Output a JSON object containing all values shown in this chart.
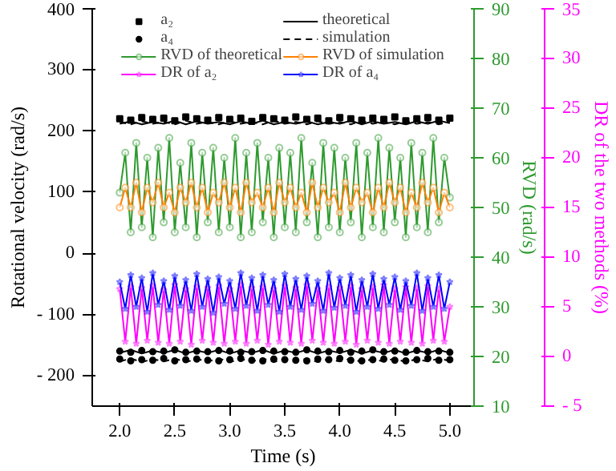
{
  "chart_data": {
    "type": "line",
    "xlabel": "Time (s)",
    "ylabel": "Rotational velocity (rad/s)",
    "y2label": "RVD (rad/s)",
    "y3label": "DR of the two methods (%)",
    "xlim": [
      1.75,
      5.22
    ],
    "xticks": [
      {
        "value": 2.0,
        "label": "2.0"
      },
      2.5,
      {
        "value": 3.0,
        "label": "3.0"
      },
      3.5,
      {
        "value": 4.0,
        "label": "4.0"
      },
      4.5,
      {
        "value": 5.0,
        "label": "5.0"
      }
    ],
    "ylim": [
      -250,
      400
    ],
    "yticks": [
      {
        "value": -200,
        "label": "- 200"
      },
      {
        "value": -100,
        "label": "- 100"
      },
      0,
      100,
      200,
      300,
      400
    ],
    "y2lim": [
      10,
      90
    ],
    "y2ticks": [
      10,
      20,
      30,
      40,
      50,
      60,
      70,
      80,
      90
    ],
    "y3lim": [
      -5,
      35
    ],
    "y3ticks": [
      {
        "value": -5,
        "label": "- 5"
      },
      0,
      5,
      10,
      15,
      20,
      25,
      30,
      35
    ],
    "grid": false,
    "legend": "top",
    "x": [
      2.0,
      2.05,
      2.1,
      2.15,
      2.2,
      2.25,
      2.3,
      2.35,
      2.4,
      2.45,
      2.5,
      2.55,
      2.6,
      2.65,
      2.7,
      2.75,
      2.8,
      2.85,
      2.9,
      2.95,
      3.0,
      3.05,
      3.1,
      3.15,
      3.2,
      3.25,
      3.3,
      3.35,
      3.4,
      3.45,
      3.5,
      3.55,
      3.6,
      3.65,
      3.7,
      3.75,
      3.8,
      3.85,
      3.9,
      3.95,
      4.0,
      4.05,
      4.1,
      4.15,
      4.2,
      4.25,
      4.3,
      4.35,
      4.4,
      4.45,
      4.5,
      4.55,
      4.6,
      4.65,
      4.7,
      4.75,
      4.8,
      4.85,
      4.9,
      4.95,
      5.0
    ],
    "series": [
      {
        "name": "a₂",
        "type": "scatter",
        "marker": "square",
        "color": "#000000",
        "x": [
          2.0,
          2.1,
          2.2,
          2.3,
          2.4,
          2.5,
          2.6,
          2.7,
          2.8,
          2.9,
          3.0,
          3.1,
          3.2,
          3.3,
          3.4,
          3.5,
          3.6,
          3.7,
          3.8,
          3.9,
          4.0,
          4.1,
          4.2,
          4.3,
          4.4,
          4.5,
          4.6,
          4.7,
          4.8,
          4.9,
          5.0
        ],
        "values": [
          220,
          218,
          222,
          219,
          221,
          217,
          223,
          220,
          218,
          222,
          219,
          221,
          216,
          222,
          220,
          218,
          223,
          219,
          221,
          217,
          222,
          220,
          218,
          221,
          219,
          223,
          217,
          220,
          222,
          218,
          221
        ]
      },
      {
        "name": "theoretical",
        "line_style": "solid",
        "marker": "none",
        "color": "#000000",
        "x": [
          2.0,
          2.1,
          2.2,
          2.3,
          2.4,
          2.5,
          2.6,
          2.7,
          2.8,
          2.9,
          3.0,
          3.1,
          3.2,
          3.3,
          3.4,
          3.5,
          3.6,
          3.7,
          3.8,
          3.9,
          4.0,
          4.1,
          4.2,
          4.3,
          4.4,
          4.5,
          4.6,
          4.7,
          4.8,
          4.9,
          5.0
        ],
        "values": [
          212,
          216,
          211,
          215,
          212,
          217,
          211,
          216,
          212,
          215,
          211,
          216,
          212,
          217,
          211,
          215,
          212,
          216,
          211,
          215,
          212,
          217,
          211,
          216,
          212,
          215,
          211,
          216,
          212,
          217,
          213
        ]
      },
      {
        "name": "a₄",
        "type": "scatter",
        "marker": "circle",
        "color": "#000000",
        "x": [
          2.0,
          2.1,
          2.2,
          2.3,
          2.4,
          2.5,
          2.6,
          2.7,
          2.8,
          2.9,
          3.0,
          3.1,
          3.2,
          3.3,
          3.4,
          3.5,
          3.6,
          3.7,
          3.8,
          3.9,
          4.0,
          4.1,
          4.2,
          4.3,
          4.4,
          4.5,
          4.6,
          4.7,
          4.8,
          4.9,
          5.0
        ],
        "values": [
          -160,
          -162,
          -159,
          -161,
          -160,
          -158,
          -162,
          -160,
          -161,
          -159,
          -160,
          -162,
          -161,
          -159,
          -160,
          -161,
          -162,
          -158,
          -160,
          -161,
          -159,
          -162,
          -160,
          -158,
          -161,
          -160,
          -162,
          -159,
          -161,
          -160,
          -162
        ]
      },
      {
        "name": "simulation",
        "line_style": "dashed",
        "marker": "none",
        "color": "#000000",
        "x": [
          2.0,
          2.1,
          2.2,
          2.3,
          2.4,
          2.5,
          2.6,
          2.7,
          2.8,
          2.9,
          3.0,
          3.1,
          3.2,
          3.3,
          3.4,
          3.5,
          3.6,
          3.7,
          3.8,
          3.9,
          4.0,
          4.1,
          4.2,
          4.3,
          4.4,
          4.5,
          4.6,
          4.7,
          4.8,
          4.9,
          5.0
        ],
        "values": [
          215,
          211,
          216,
          212,
          215,
          211,
          217,
          212,
          215,
          211,
          216,
          212,
          215,
          211,
          217,
          212,
          215,
          211,
          216,
          212,
          215,
          211,
          217,
          212,
          215,
          211,
          216,
          212,
          215,
          211,
          215
        ]
      },
      {
        "type": "scatter",
        "marker": "circle",
        "color": "#000000",
        "x": [
          2.0,
          2.1,
          2.2,
          2.3,
          2.4,
          2.5,
          2.6,
          2.7,
          2.8,
          2.9,
          3.0,
          3.1,
          3.2,
          3.3,
          3.4,
          3.5,
          3.6,
          3.7,
          3.8,
          3.9,
          4.0,
          4.1,
          4.2,
          4.3,
          4.4,
          4.5,
          4.6,
          4.7,
          4.8,
          4.9,
          5.0
        ],
        "values": [
          -173,
          -176,
          -174,
          -175,
          -172,
          -176,
          -174,
          -173,
          -175,
          -176,
          -174,
          -172,
          -175,
          -176,
          -173,
          -174,
          -175,
          -176,
          -173,
          -174,
          -172,
          -175,
          -176,
          -174,
          -173,
          -175,
          -176,
          -174,
          -172,
          -175,
          -174
        ]
      },
      {
        "line_style": "solid",
        "marker": "none",
        "color": "#000000",
        "x": [
          2.0,
          2.1,
          2.2,
          2.3,
          2.4,
          2.5,
          2.6,
          2.7,
          2.8,
          2.9,
          3.0,
          3.1,
          3.2,
          3.3,
          3.4,
          3.5,
          3.6,
          3.7,
          3.8,
          3.9,
          4.0,
          4.1,
          4.2,
          4.3,
          4.4,
          4.5,
          4.6,
          4.7,
          4.8,
          4.9,
          5.0
        ],
        "values": [
          -163,
          -158,
          -164,
          -159,
          -163,
          -158,
          -164,
          -159,
          -163,
          -158,
          -164,
          -159,
          -163,
          -158,
          -164,
          -159,
          -163,
          -158,
          -164,
          -159,
          -163,
          -158,
          -164,
          -159,
          -163,
          -158,
          -164,
          -159,
          -163,
          -158,
          -163
        ]
      },
      {
        "line_style": "dashed",
        "marker": "none",
        "color": "#000000",
        "x": [
          2.0,
          2.1,
          2.2,
          2.3,
          2.4,
          2.5,
          2.6,
          2.7,
          2.8,
          2.9,
          3.0,
          3.1,
          3.2,
          3.3,
          3.4,
          3.5,
          3.6,
          3.7,
          3.8,
          3.9,
          4.0,
          4.1,
          4.2,
          4.3,
          4.4,
          4.5,
          4.6,
          4.7,
          4.8,
          4.9,
          5.0
        ],
        "values": [
          -177,
          -172,
          -178,
          -173,
          -177,
          -172,
          -178,
          -173,
          -177,
          -172,
          -178,
          -173,
          -177,
          -172,
          -178,
          -173,
          -177,
          -172,
          -178,
          -173,
          -177,
          -172,
          -178,
          -173,
          -177,
          -172,
          -178,
          -173,
          -177,
          -172,
          -176
        ]
      },
      {
        "name": "RVD of theoretical",
        "axis": "y2",
        "marker": "circle",
        "line_style": "solid",
        "color": "#2e9a2e",
        "values": [
          53,
          61,
          45,
          63,
          46,
          60,
          44,
          62,
          47,
          64,
          45,
          59,
          46,
          63,
          44,
          61,
          47,
          62,
          45,
          60,
          46,
          64,
          44,
          61,
          45,
          63,
          47,
          60,
          44,
          62,
          46,
          61,
          45,
          64,
          47,
          59,
          44,
          63,
          46,
          62,
          45,
          60,
          47,
          63,
          44,
          61,
          46,
          64,
          45,
          62,
          47,
          60,
          44,
          63,
          46,
          61,
          45,
          64,
          47,
          60,
          52
        ]
      },
      {
        "name": "RVD of simulation",
        "axis": "y2",
        "marker": "circle",
        "line_style": "solid",
        "color": "#ff8000",
        "values": [
          50,
          54,
          50,
          55,
          49,
          54,
          51,
          55,
          50,
          53,
          49,
          54,
          51,
          55,
          50,
          54,
          49,
          53,
          51,
          55,
          50,
          54,
          49,
          55,
          51,
          53,
          50,
          54,
          49,
          55,
          51,
          54,
          50,
          53,
          49,
          55,
          50,
          54,
          51,
          53,
          49,
          55,
          50,
          54,
          51,
          53,
          49,
          54,
          50,
          55,
          51,
          54,
          49,
          53,
          50,
          55,
          51,
          54,
          49,
          53,
          50
        ]
      },
      {
        "name": "DR of a₂",
        "axis": "y3",
        "marker": "star",
        "line_style": "solid",
        "color": "#ff00ff",
        "values": [
          6.8,
          1.5,
          7.0,
          1.3,
          6.9,
          1.6,
          7.1,
          1.4,
          6.7,
          1.3,
          7.2,
          1.5,
          6.8,
          1.2,
          7.0,
          1.6,
          6.9,
          1.4,
          7.1,
          1.3,
          6.8,
          1.5,
          7.2,
          1.3,
          6.9,
          1.6,
          7.0,
          1.2,
          6.8,
          1.5,
          7.1,
          1.4,
          6.9,
          1.3,
          7.2,
          1.6,
          6.8,
          1.4,
          7.0,
          1.3,
          6.9,
          1.5,
          7.1,
          1.2,
          6.8,
          1.6,
          7.0,
          1.4,
          7.2,
          1.3,
          6.8,
          1.5,
          7.0,
          1.4,
          6.9,
          1.3,
          7.1,
          1.6,
          6.8,
          1.5,
          5.0
        ]
      },
      {
        "name": "DR of a₄",
        "axis": "y3",
        "marker": "star",
        "line_style": "solid",
        "color": "#0000ff",
        "values": [
          7.5,
          4.8,
          8.2,
          5.0,
          7.9,
          4.5,
          8.4,
          5.2,
          7.6,
          4.7,
          8.1,
          5.1,
          7.7,
          4.6,
          8.3,
          5.0,
          7.8,
          4.4,
          8.0,
          5.3,
          7.6,
          4.8,
          8.4,
          5.1,
          7.9,
          4.6,
          8.2,
          5.2,
          7.7,
          4.5,
          8.3,
          5.0,
          7.8,
          4.7,
          8.1,
          5.3,
          7.6,
          4.6,
          8.4,
          4.9,
          7.9,
          5.1,
          8.2,
          4.5,
          7.7,
          5.0,
          8.3,
          4.8,
          7.8,
          5.2,
          8.0,
          4.7,
          7.6,
          5.1,
          8.4,
          4.6,
          7.9,
          5.0,
          8.2,
          4.8,
          7.5
        ]
      }
    ]
  }
}
